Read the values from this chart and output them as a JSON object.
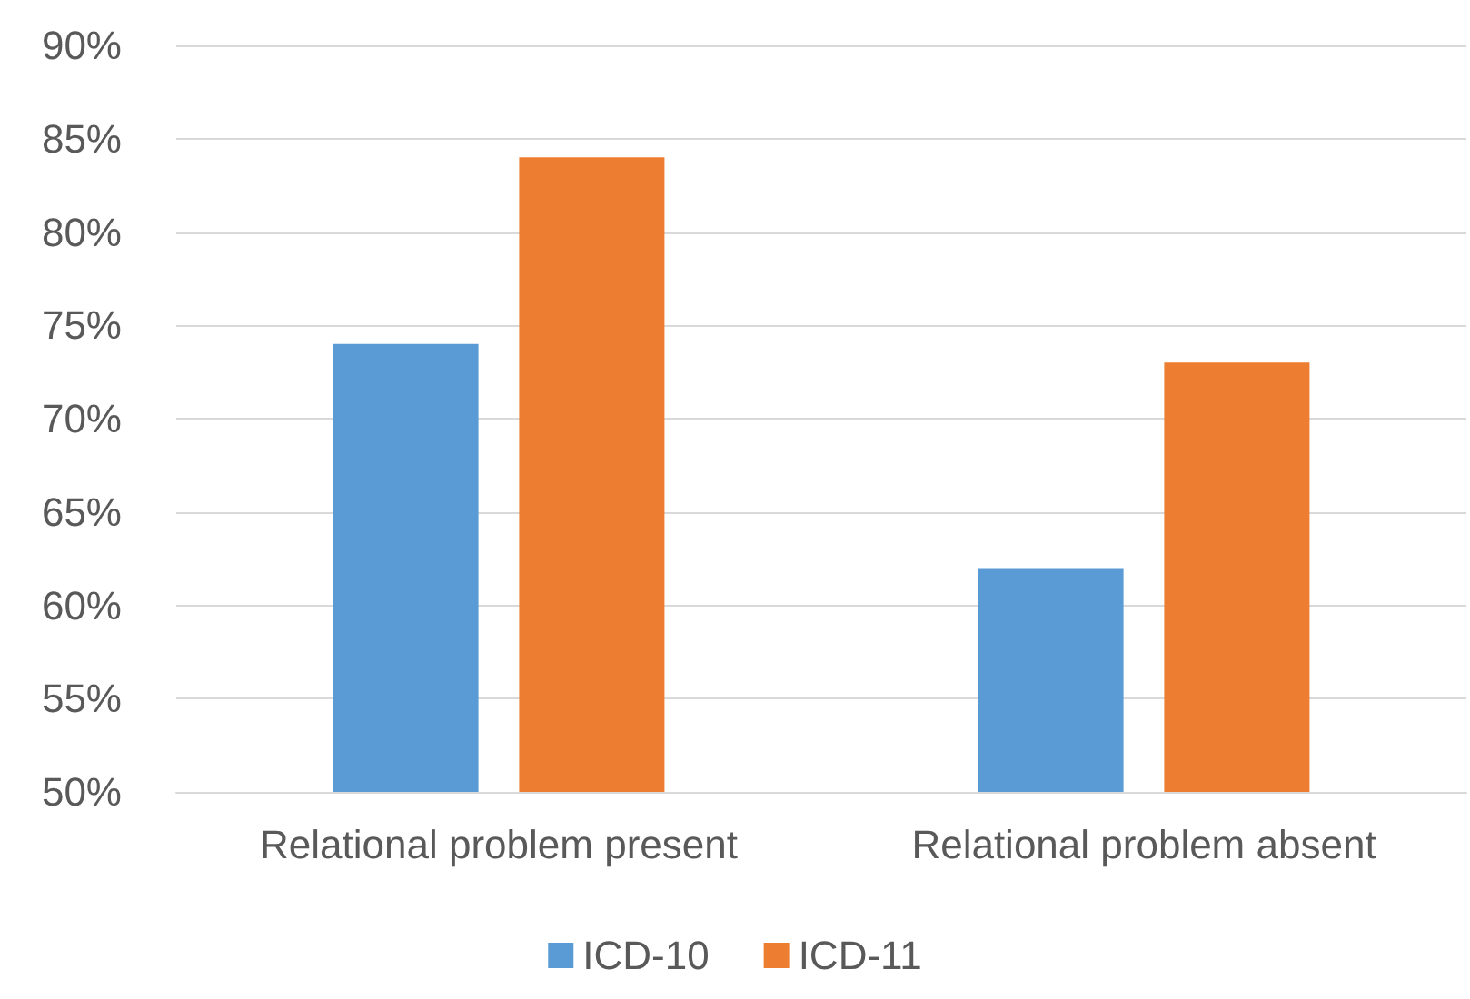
{
  "chart_data": {
    "type": "bar",
    "categories": [
      "Relational problem present",
      "Relational problem absent"
    ],
    "series": [
      {
        "name": "ICD-10",
        "color": "#5b9bd5",
        "values": [
          74,
          62
        ]
      },
      {
        "name": "ICD-11",
        "color": "#ed7d31",
        "values": [
          84,
          73
        ]
      }
    ],
    "ylim": [
      50,
      90
    ],
    "yticks": [
      {
        "value": 50,
        "label": "50%"
      },
      {
        "value": 55,
        "label": "55%"
      },
      {
        "value": 60,
        "label": "60%"
      },
      {
        "value": 65,
        "label": "65%"
      },
      {
        "value": 70,
        "label": "70%"
      },
      {
        "value": 75,
        "label": "75%"
      },
      {
        "value": 80,
        "label": "80%"
      },
      {
        "value": 85,
        "label": "85%"
      },
      {
        "value": 90,
        "label": "90%"
      }
    ],
    "grid": "y",
    "legend": "bottom"
  }
}
